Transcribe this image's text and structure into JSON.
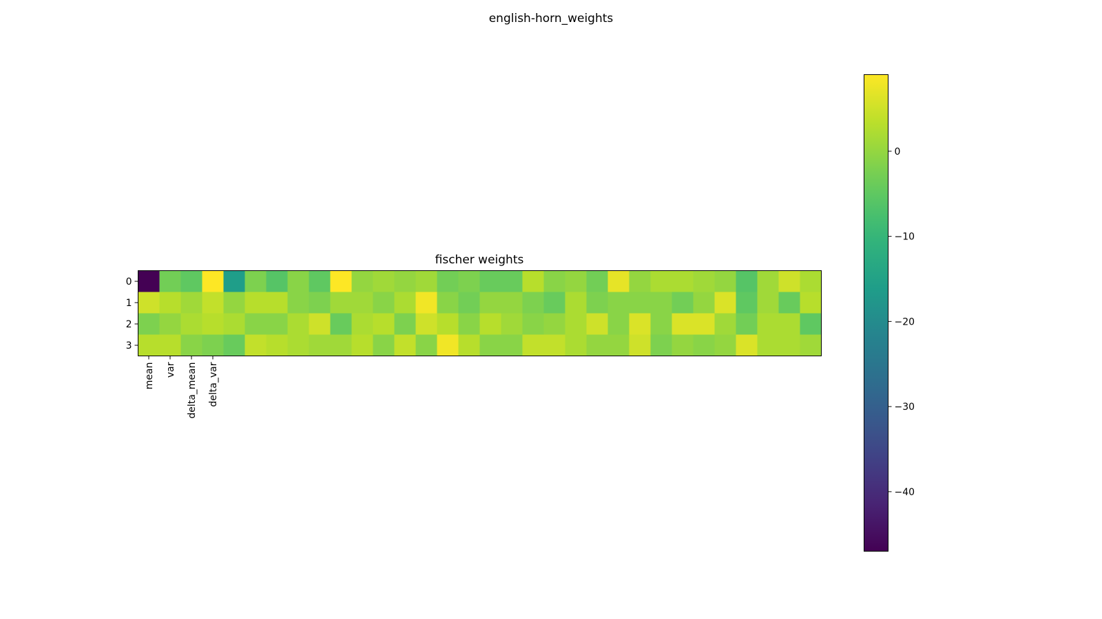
{
  "figure_title": "english-horn_weights",
  "chart_data": {
    "type": "heatmap",
    "title": "fischer weights",
    "colormap": "viridis",
    "value_range": [
      -47,
      9
    ],
    "y_ticks": [
      "0",
      "1",
      "2",
      "3"
    ],
    "x_ticks": [
      "mean",
      "var",
      "delta_mean",
      "delta_var"
    ],
    "colorbar_ticks": [
      {
        "value": 0,
        "label": "0"
      },
      {
        "value": -10,
        "label": "−10"
      },
      {
        "value": -20,
        "label": "−20"
      },
      {
        "value": -30,
        "label": "−30"
      },
      {
        "value": -40,
        "label": "−40"
      }
    ],
    "matrix": [
      [
        -47,
        -3,
        -5,
        9,
        -16,
        -2,
        -6,
        -1,
        -5,
        9,
        0,
        1,
        0,
        1,
        -3,
        -2,
        -4,
        -4,
        3,
        -1,
        0,
        -3,
        7,
        0,
        2,
        2,
        1,
        0,
        -6,
        1,
        5,
        2
      ],
      [
        5,
        3,
        1,
        4,
        0,
        3,
        3,
        -1,
        -2,
        1,
        1,
        -1,
        2,
        8,
        -1,
        -3,
        0,
        0,
        -2,
        -4,
        2,
        -2,
        -1,
        -1,
        -1,
        -3,
        0,
        6,
        -5,
        1,
        -4,
        3
      ],
      [
        -2,
        0,
        2,
        3,
        2,
        -1,
        -1,
        2,
        5,
        -4,
        2,
        3,
        -2,
        5,
        3,
        -1,
        3,
        1,
        -1,
        0,
        2,
        5,
        -1,
        6,
        -1,
        6,
        6,
        1,
        -3,
        2,
        2,
        -5
      ],
      [
        3,
        3,
        -1,
        -2,
        -4,
        4,
        3,
        2,
        1,
        1,
        3,
        -1,
        4,
        -1,
        8,
        3,
        -1,
        -1,
        4,
        4,
        2,
        0,
        0,
        5,
        -2,
        0,
        -1,
        0,
        6,
        2,
        2,
        1
      ]
    ]
  }
}
